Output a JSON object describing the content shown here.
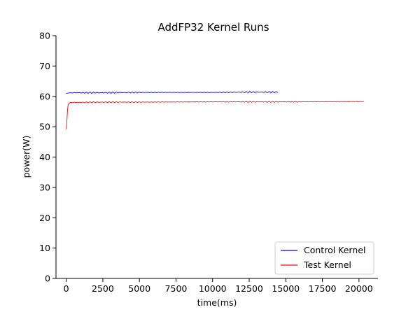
{
  "chart_data": {
    "type": "line",
    "title": "AddFP32 Kernel Runs",
    "xlabel": "time(ms)",
    "ylabel": "power(W)",
    "xlim": [
      -700,
      21300
    ],
    "ylim": [
      0,
      80
    ],
    "xticks": [
      0,
      2500,
      5000,
      7500,
      10000,
      12500,
      15000,
      17500,
      20000
    ],
    "yticks": [
      0,
      10,
      20,
      30,
      40,
      50,
      60,
      70,
      80
    ],
    "grid": false,
    "legend_position": "lower-right",
    "series": [
      {
        "name": "Control Kernel",
        "color": "#0000ff",
        "x_start": 0,
        "x_end": 14500,
        "level": 61.2,
        "ripple": 0.25,
        "points": [
          [
            0,
            61.0
          ],
          [
            300,
            61.2
          ],
          [
            2500,
            61.2
          ],
          [
            5000,
            61.3
          ],
          [
            7500,
            61.3
          ],
          [
            10000,
            61.3
          ],
          [
            12500,
            61.4
          ],
          [
            14500,
            61.4
          ]
        ]
      },
      {
        "name": "Test Kernel",
        "color": "#ff0000",
        "x_start": 0,
        "x_end": 20400,
        "level": 58.2,
        "ripple": 0.2,
        "points": [
          [
            0,
            49.2
          ],
          [
            40,
            51.5
          ],
          [
            80,
            55.0
          ],
          [
            120,
            57.0
          ],
          [
            200,
            57.8
          ],
          [
            300,
            58.0
          ],
          [
            2500,
            58.1
          ],
          [
            5000,
            58.1
          ],
          [
            10000,
            58.2
          ],
          [
            15000,
            58.2
          ],
          [
            20400,
            58.3
          ]
        ]
      }
    ]
  }
}
